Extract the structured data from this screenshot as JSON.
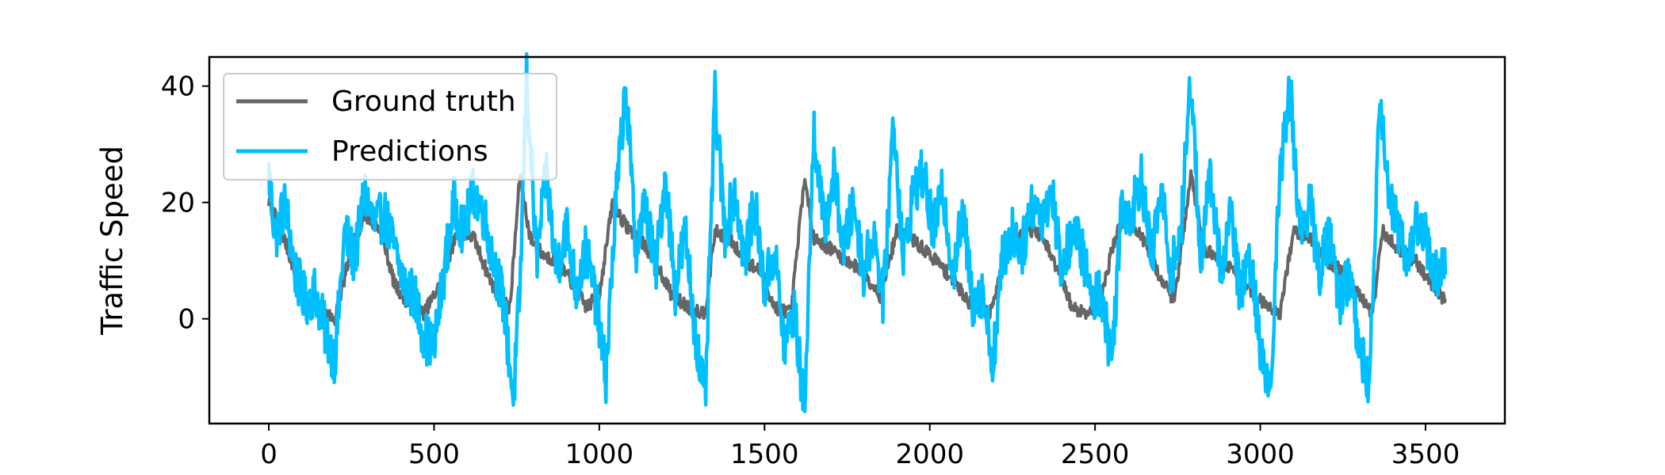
{
  "chart_data": {
    "type": "line",
    "title": "",
    "xlabel": "",
    "ylabel": "Traffic Speed",
    "xlim": [
      -180,
      3740
    ],
    "ylim": [
      -18,
      45
    ],
    "x_ticks": [
      0,
      500,
      1000,
      1500,
      2000,
      2500,
      3000,
      3500
    ],
    "y_ticks": [
      0,
      20,
      40
    ],
    "x_range": [
      0,
      3560
    ],
    "grid": false,
    "legend_position": "top-left",
    "colors": {
      "ground_truth": "#666666",
      "predictions": "#00bfff"
    },
    "series": [
      {
        "name": "Ground truth",
        "key": "ground_truth",
        "x": [
          0,
          40,
          90,
          140,
          200,
          250,
          290,
          340,
          380,
          430,
          470,
          520,
          570,
          620,
          660,
          700,
          730,
          760,
          790,
          830,
          870,
          920,
          960,
          1000,
          1040,
          1080,
          1120,
          1170,
          1220,
          1270,
          1320,
          1350,
          1390,
          1440,
          1490,
          1530,
          1580,
          1620,
          1650,
          1700,
          1750,
          1800,
          1850,
          1900,
          1940,
          1980,
          2020,
          2080,
          2130,
          2180,
          2240,
          2290,
          2340,
          2390,
          2430,
          2480,
          2520,
          2560,
          2600,
          2640,
          2690,
          2740,
          2790,
          2830,
          2880,
          2930,
          2980,
          3030,
          3060,
          3100,
          3150,
          3200,
          3250,
          3300,
          3340,
          3370,
          3420,
          3470,
          3520,
          3560
        ],
        "values": [
          20,
          15,
          6,
          2,
          0,
          12,
          18,
          15,
          6,
          2,
          1,
          6,
          15,
          14,
          8,
          3,
          2,
          25,
          14,
          11,
          10,
          6,
          2,
          4,
          20,
          16,
          14,
          10,
          4,
          2,
          1,
          15,
          14,
          10,
          8,
          2,
          1,
          24,
          14,
          12,
          10,
          8,
          4,
          15,
          14,
          12,
          10,
          6,
          2,
          1,
          12,
          16,
          14,
          8,
          2,
          1,
          4,
          14,
          18,
          14,
          8,
          3,
          25,
          12,
          10,
          8,
          4,
          2,
          1,
          15,
          14,
          10,
          8,
          4,
          1,
          15,
          12,
          10,
          6,
          3
        ]
      },
      {
        "name": "Predictions",
        "key": "predictions",
        "x": [
          0,
          20,
          50,
          80,
          110,
          140,
          170,
          200,
          230,
          260,
          290,
          320,
          350,
          380,
          410,
          440,
          470,
          500,
          530,
          560,
          590,
          620,
          650,
          680,
          710,
          740,
          760,
          780,
          810,
          840,
          870,
          900,
          930,
          960,
          990,
          1020,
          1050,
          1080,
          1110,
          1140,
          1170,
          1200,
          1230,
          1260,
          1290,
          1320,
          1350,
          1380,
          1410,
          1440,
          1470,
          1500,
          1530,
          1560,
          1590,
          1620,
          1650,
          1680,
          1710,
          1740,
          1770,
          1800,
          1830,
          1860,
          1890,
          1920,
          1950,
          1980,
          2010,
          2040,
          2070,
          2100,
          2130,
          2160,
          2190,
          2220,
          2250,
          2280,
          2310,
          2340,
          2370,
          2400,
          2430,
          2460,
          2490,
          2520,
          2550,
          2580,
          2610,
          2640,
          2670,
          2700,
          2730,
          2760,
          2790,
          2820,
          2850,
          2880,
          2910,
          2940,
          2970,
          3000,
          3030,
          3060,
          3090,
          3120,
          3150,
          3180,
          3210,
          3240,
          3270,
          3300,
          3330,
          3360,
          3390,
          3420,
          3450,
          3480,
          3510,
          3540,
          3560
        ],
        "values": [
          25,
          14,
          20,
          8,
          3,
          5,
          -2,
          -7,
          15,
          10,
          22,
          16,
          18,
          12,
          6,
          4,
          -3,
          -5,
          8,
          20,
          15,
          22,
          18,
          10,
          3,
          -14,
          5,
          42,
          10,
          25,
          8,
          16,
          5,
          12,
          3,
          -10,
          20,
          40,
          12,
          20,
          8,
          25,
          5,
          15,
          -2,
          -15,
          38,
          15,
          22,
          10,
          20,
          5,
          12,
          -5,
          2,
          -16,
          33,
          15,
          25,
          12,
          20,
          8,
          15,
          3,
          35,
          10,
          22,
          25,
          15,
          22,
          8,
          18,
          3,
          5,
          -8,
          10,
          15,
          12,
          20,
          18,
          22,
          8,
          15,
          12,
          3,
          5,
          -8,
          20,
          18,
          25,
          10,
          22,
          8,
          15,
          42,
          10,
          25,
          8,
          18,
          4,
          10,
          -5,
          -12,
          25,
          40,
          15,
          20,
          8,
          15,
          3,
          8,
          -5,
          -12,
          38,
          22,
          15,
          10,
          18,
          12,
          6,
          10
        ]
      }
    ]
  }
}
